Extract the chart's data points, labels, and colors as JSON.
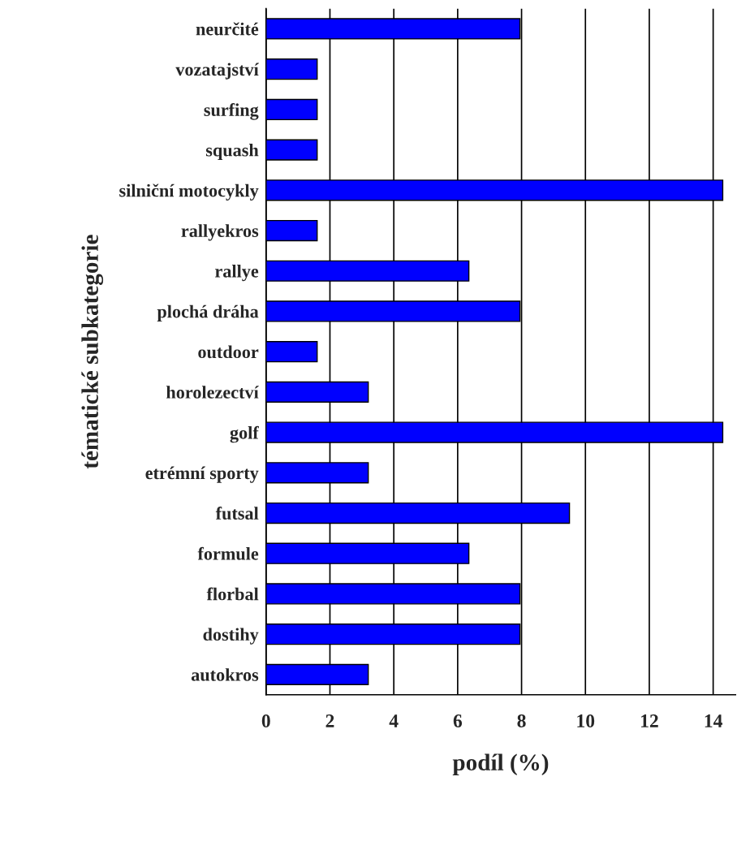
{
  "chart_data": {
    "type": "bar",
    "orientation": "horizontal",
    "categories": [
      "neurčité",
      "vozatajství",
      "surfing",
      "squash",
      "silniční motocykly",
      "rallyekros",
      "rallye",
      "plochá dráha",
      "outdoor",
      "horolezectví",
      "golf",
      "etrémní sporty",
      "futsal",
      "formule",
      "florbal",
      "dostihy",
      "autokros"
    ],
    "values": [
      7.95,
      1.6,
      1.6,
      1.6,
      14.3,
      1.6,
      6.35,
      7.95,
      1.6,
      3.2,
      14.3,
      3.2,
      9.5,
      6.35,
      7.95,
      7.95,
      3.2
    ],
    "color": "#0000ff",
    "xlim": [
      0,
      14.7
    ],
    "xticks": [
      0,
      2,
      4,
      6,
      8,
      10,
      12,
      14
    ],
    "xlabel": "podíl (%)",
    "ylabel": "tématické subkategorie",
    "grid": "x",
    "legend": false
  }
}
